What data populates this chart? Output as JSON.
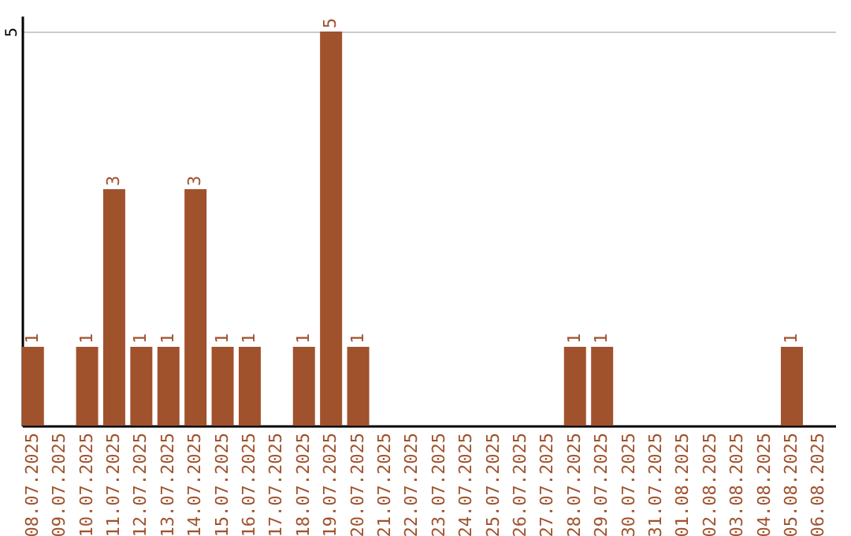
{
  "chart_data": {
    "type": "bar",
    "categories": [
      "08.07.2025",
      "09.07.2025",
      "10.07.2025",
      "11.07.2025",
      "12.07.2025",
      "13.07.2025",
      "14.07.2025",
      "15.07.2025",
      "16.07.2025",
      "17.07.2025",
      "18.07.2025",
      "19.07.2025",
      "20.07.2025",
      "21.07.2025",
      "22.07.2025",
      "23.07.2025",
      "24.07.2025",
      "25.07.2025",
      "26.07.2025",
      "27.07.2025",
      "28.07.2025",
      "29.07.2025",
      "30.07.2025",
      "31.07.2025",
      "01.08.2025",
      "02.08.2025",
      "03.08.2025",
      "04.08.2025",
      "05.08.2025",
      "06.08.2025"
    ],
    "values": [
      1,
      0,
      1,
      3,
      1,
      1,
      3,
      1,
      1,
      0,
      1,
      5,
      1,
      0,
      0,
      0,
      0,
      0,
      0,
      0,
      1,
      1,
      0,
      0,
      0,
      0,
      0,
      0,
      1,
      0
    ],
    "value_labels": [
      "1",
      null,
      "1",
      "3",
      "1",
      "1",
      "3",
      "1",
      "1",
      null,
      "1",
      "5",
      "1",
      null,
      null,
      null,
      null,
      null,
      null,
      null,
      "1",
      "1",
      null,
      null,
      null,
      null,
      null,
      null,
      "1",
      null
    ],
    "color": "#a0522d",
    "ylim": [
      0,
      5.2
    ],
    "yticks": [
      5
    ],
    "grid": "y"
  }
}
